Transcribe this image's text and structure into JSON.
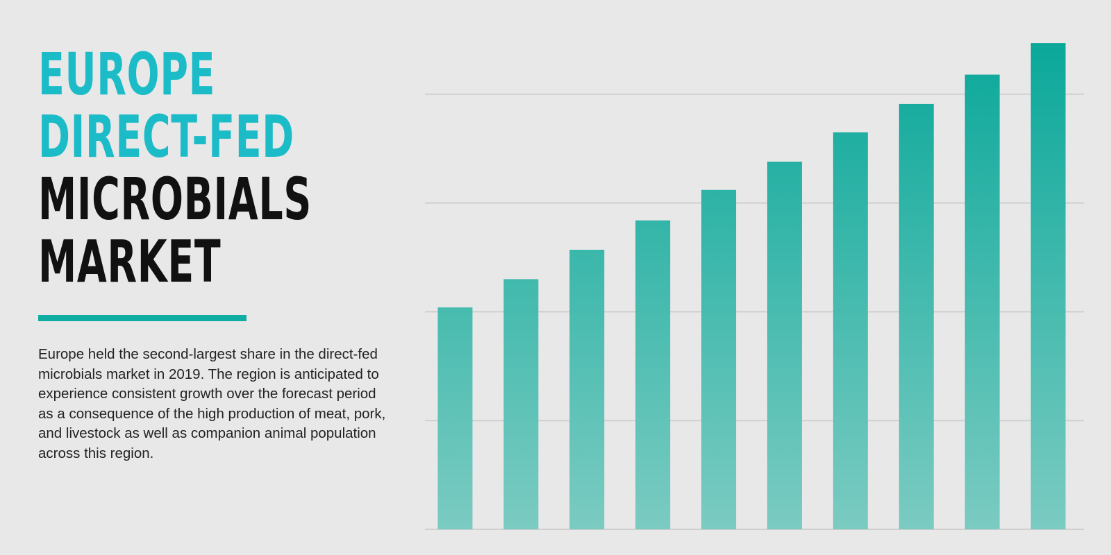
{
  "heading": {
    "highlight_lines": [
      "EUROPE",
      "DIRECT-FED"
    ],
    "main_lines": [
      "MICROBIALS",
      "MARKET"
    ]
  },
  "description": "Europe held the second-largest share in the direct-fed microbials market in 2019. The region is anticipated to experience consistent growth over the forecast period as a consequence of the high production of meat, pork, and livestock as well as companion animal population across this region.",
  "chart_data": {
    "type": "bar",
    "categories": [
      null,
      null,
      null,
      null,
      null,
      null,
      null,
      null,
      null,
      null
    ],
    "values": [
      2.04,
      2.3,
      2.57,
      2.84,
      3.12,
      3.38,
      3.65,
      3.91,
      4.18,
      4.47
    ],
    "color": "#0aa89a",
    "ylim": [
      0,
      4.6
    ],
    "yticks": [
      0,
      1,
      2,
      3,
      4
    ],
    "grid": true
  }
}
